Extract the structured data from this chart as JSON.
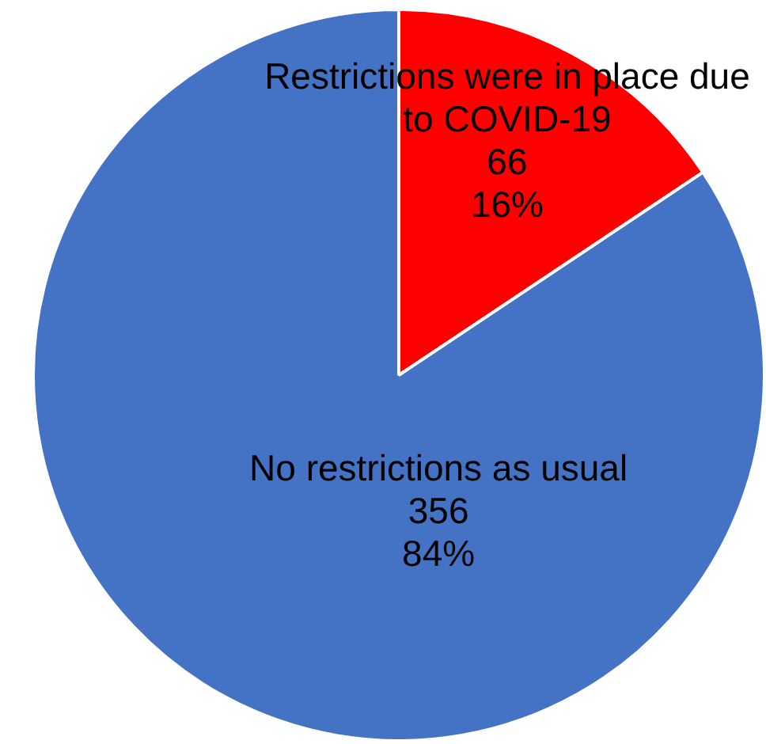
{
  "chart_data": {
    "type": "pie",
    "categories": [
      "Restrictions were in place due to COVID-19",
      "No restrictions as usual"
    ],
    "values": [
      66,
      356
    ],
    "colors": [
      "#ff0000",
      "#4472c4"
    ],
    "value_labels": [
      "66\n16%",
      "356\n84%"
    ],
    "legend": false
  }
}
